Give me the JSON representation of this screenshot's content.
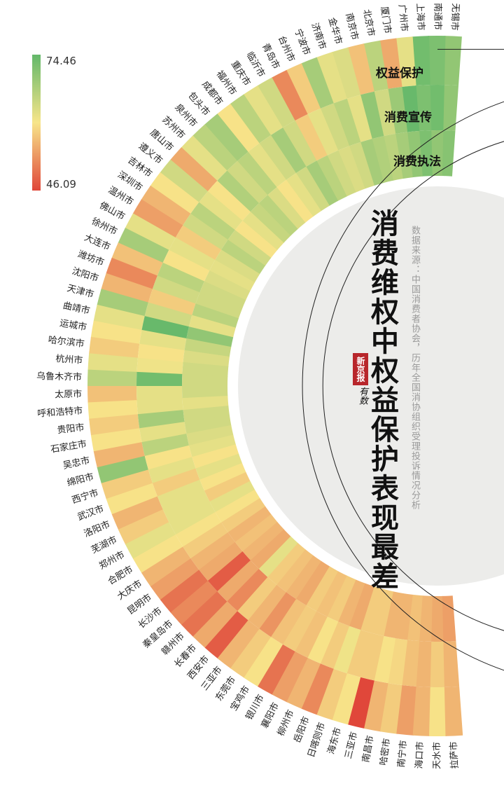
{
  "title": "消费维权中权益保护表现最差",
  "source": "数据来源：中国消费者协会，历年全国消协组织受理投诉情况分析",
  "logo": {
    "name": "新京报",
    "sub": "有数"
  },
  "legend": {
    "max_label": "74.46",
    "min_label": "46.09"
  },
  "colors": {
    "high": "#63b86a",
    "mid": "#f7e58a",
    "low": "#e0473a",
    "track": "#ececea"
  },
  "chart_data": {
    "type": "heatmap",
    "layout": "radial",
    "rings": [
      "权益保护",
      "消费宣传",
      "消费执法"
    ],
    "value_range": [
      46.09,
      74.46
    ],
    "cities": [
      "无锡市",
      "南通市",
      "上海市",
      "广州市",
      "厦门市",
      "北京市",
      "南京市",
      "金华市",
      "济南市",
      "宁波市",
      "台州市",
      "青岛市",
      "临沂市",
      "重庆市",
      "福州市",
      "成都市",
      "包头市",
      "泉州市",
      "苏州市",
      "唐山市",
      "遵义市",
      "吉林市",
      "深圳市",
      "温州市",
      "佛山市",
      "徐州市",
      "大连市",
      "潍坊市",
      "沈阳市",
      "天津市",
      "曲靖市",
      "运城市",
      "哈尔滨市",
      "杭州市",
      "乌鲁木齐市",
      "太原市",
      "呼和浩特市",
      "贵阳市",
      "石家庄市",
      "吴忠市",
      "绵阳市",
      "西宁市",
      "武汉市",
      "洛阳市",
      "芜湖市",
      "郑州市",
      "合肥市",
      "大庆市",
      "昆明市",
      "长沙市",
      "秦皇岛市",
      "赣州市",
      "长春市",
      "西安市",
      "三亚市",
      "东莞市",
      "宝鸡市",
      "银川市",
      "襄阳市",
      "柳州市",
      "岳阳市",
      "日喀则市",
      "海东市",
      "三亚市",
      "南昌市",
      "哈密市",
      "南宁市",
      "海口市",
      "天水市",
      "拉萨市"
    ],
    "values": [
      [
        70,
        72,
        73,
        62,
        55,
        66,
        57,
        63,
        62,
        68,
        58,
        52,
        64,
        62,
        66,
        60,
        68,
        66,
        62,
        55,
        64,
        60,
        56,
        54,
        62,
        68,
        57,
        52,
        56,
        68,
        62,
        60,
        58,
        62,
        66,
        57,
        60,
        58,
        60,
        56,
        70,
        58,
        60,
        56,
        58,
        62,
        60,
        56,
        54,
        50,
        52,
        50,
        55,
        48,
        56,
        58,
        60,
        50,
        54,
        56,
        52,
        58,
        60,
        46,
        56,
        58,
        54,
        56,
        60,
        56
      ],
      [
        70,
        73,
        72,
        74,
        69,
        64,
        70,
        62,
        66,
        64,
        62,
        58,
        64,
        68,
        64,
        62,
        66,
        64,
        67,
        60,
        62,
        66,
        64,
        58,
        62,
        60,
        66,
        64,
        58,
        64,
        74,
        62,
        60,
        61,
        73,
        62,
        62,
        68,
        62,
        66,
        60,
        62,
        58,
        62,
        62,
        62,
        60,
        58,
        56,
        55,
        48,
        55,
        52,
        58,
        56,
        53,
        57,
        58,
        57,
        60,
        58,
        61,
        58,
        58,
        60,
        59,
        57,
        56,
        58,
        56
      ],
      [
        71,
        70,
        72,
        70,
        68,
        66,
        67,
        68,
        64,
        63,
        64,
        66,
        68,
        64,
        62,
        60,
        63,
        66,
        65,
        62,
        60,
        64,
        66,
        63,
        62,
        63,
        64,
        64,
        66,
        62,
        70,
        65,
        63,
        64,
        64,
        64,
        62,
        64,
        64,
        63,
        62,
        60,
        62,
        60,
        58,
        62,
        60,
        58,
        56,
        57,
        56,
        55,
        62,
        58,
        57,
        56,
        55,
        58,
        57,
        58,
        56,
        55,
        58,
        58,
        56,
        56,
        57,
        56,
        55,
        54
      ]
    ]
  }
}
